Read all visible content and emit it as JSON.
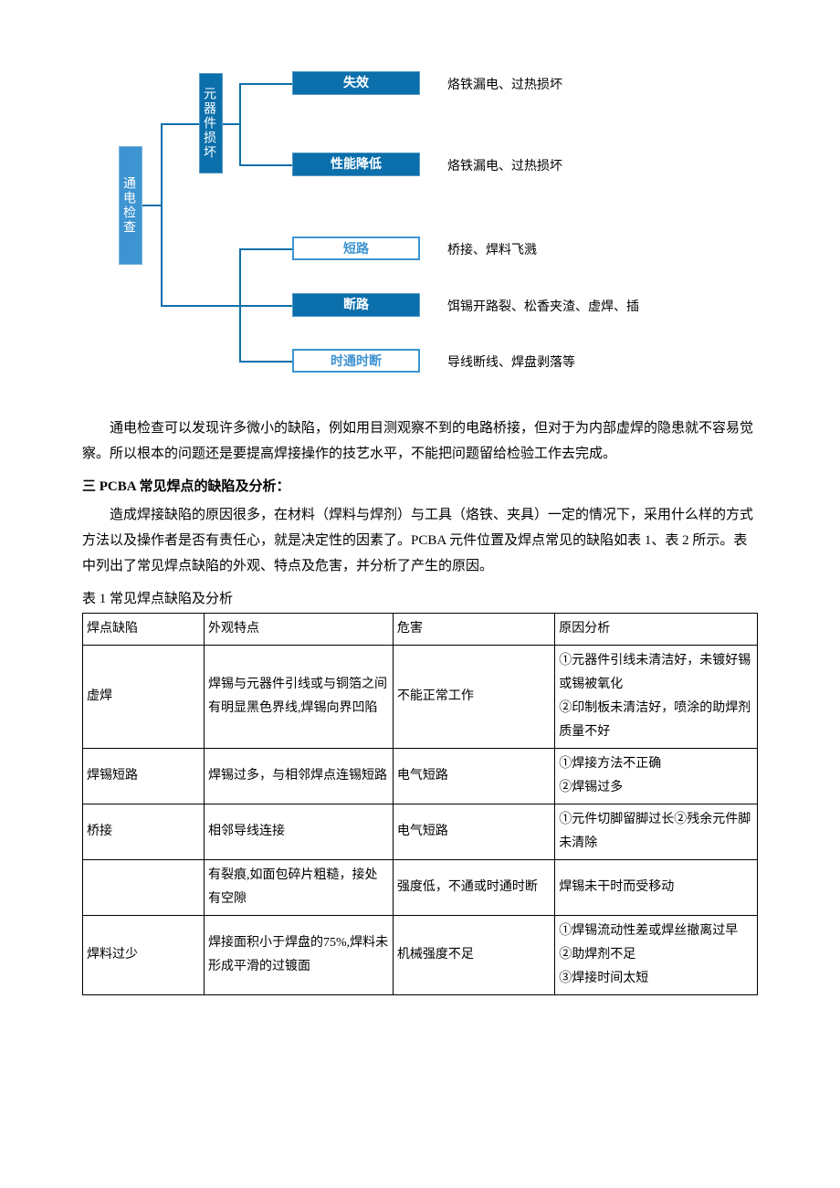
{
  "diagram": {
    "root_vbar_color": "#3e94d1",
    "sub_vbar_color": "#0b6fab",
    "hbox_fill_color": "#0b6fab",
    "hbox_outline_color": "#3e94d1",
    "line_color": "#0b6fab",
    "root": {
      "label": "通电检查"
    },
    "sub": {
      "label": "元器件损坏"
    },
    "top_group": [
      {
        "box": "失效",
        "outline": false,
        "desc": "烙铁漏电、过热损坏"
      },
      {
        "box": "性能降低",
        "outline": false,
        "desc": "烙铁漏电、过热损坏"
      }
    ],
    "bottom_group": [
      {
        "box": "短路",
        "outline": true,
        "desc": "桥接、焊料飞溅"
      },
      {
        "box": "断路",
        "outline": false,
        "desc": "饵锡开路裂、松香夹渣、虚焊、插"
      },
      {
        "box": "时通时断",
        "outline": true,
        "desc": "导线断线、焊盘剥落等"
      }
    ]
  },
  "paragraphs": {
    "p1": "通电检查可以发现许多微小的缺陷，例如用目测观察不到的电路桥接，但对于为内部虚焊的隐患就不容易觉察。所以根本的问题还是要提高焊接操作的技艺水平，不能把问题留给检验工作去完成。",
    "section_title": "三 PCBA 常见焊点的缺陷及分析：",
    "p2": "造成焊接缺陷的原因很多，在材料（焊料与焊剂）与工具（烙铁、夹具）一定的情况下，采用什么样的方式方法以及操作者是否有责任心，就是决定性的因素了。PCBA 元件位置及焊点常见的缺陷如表 1、表 2 所示。表中列出了常见焊点缺陷的外观、特点及危害，并分析了产生的原因。",
    "table_caption": "表 1 常见焊点缺陷及分析"
  },
  "table": {
    "col_widths": [
      "18%",
      "28%",
      "24%",
      "30%"
    ],
    "columns": [
      "焊点缺陷",
      "外观特点",
      "危害",
      "原因分析"
    ],
    "rows": [
      {
        "c0": "虚焊",
        "c1": "焊锡与元器件引线或与铜箔之间有明显黑色界线,焊锡向界凹陷",
        "c2": "不能正常工作",
        "c3": "①元器件引线未清洁好，未镀好锡或锡被氧化\n②印制板未清洁好，喷涂的助焊剂质量不好"
      },
      {
        "c0": "焊锡短路",
        "c1": "焊锡过多，与相邻焊点连锡短路",
        "c2": "电气短路",
        "c3": "①焊接方法不正确\n②焊锡过多"
      },
      {
        "c0": "桥接",
        "c1": "相邻导线连接",
        "c2": "电气短路",
        "c3": "①元件切脚留脚过长②残余元件脚未清除"
      },
      {
        "c0": "",
        "c1": "有裂痕,如面包碎片粗糙，接处有空隙",
        "c2": "强度低，不通或时通时断",
        "c3": "焊锡未干时而受移动"
      },
      {
        "c0": "焊料过少",
        "c1": "焊接面积小于焊盘的75%,焊料未形成平滑的过镀面",
        "c2": "机械强度不足",
        "c3": "①焊锡流动性差或焊丝撤离过早\n②助焊剂不足\n③焊接时间太短"
      }
    ]
  }
}
